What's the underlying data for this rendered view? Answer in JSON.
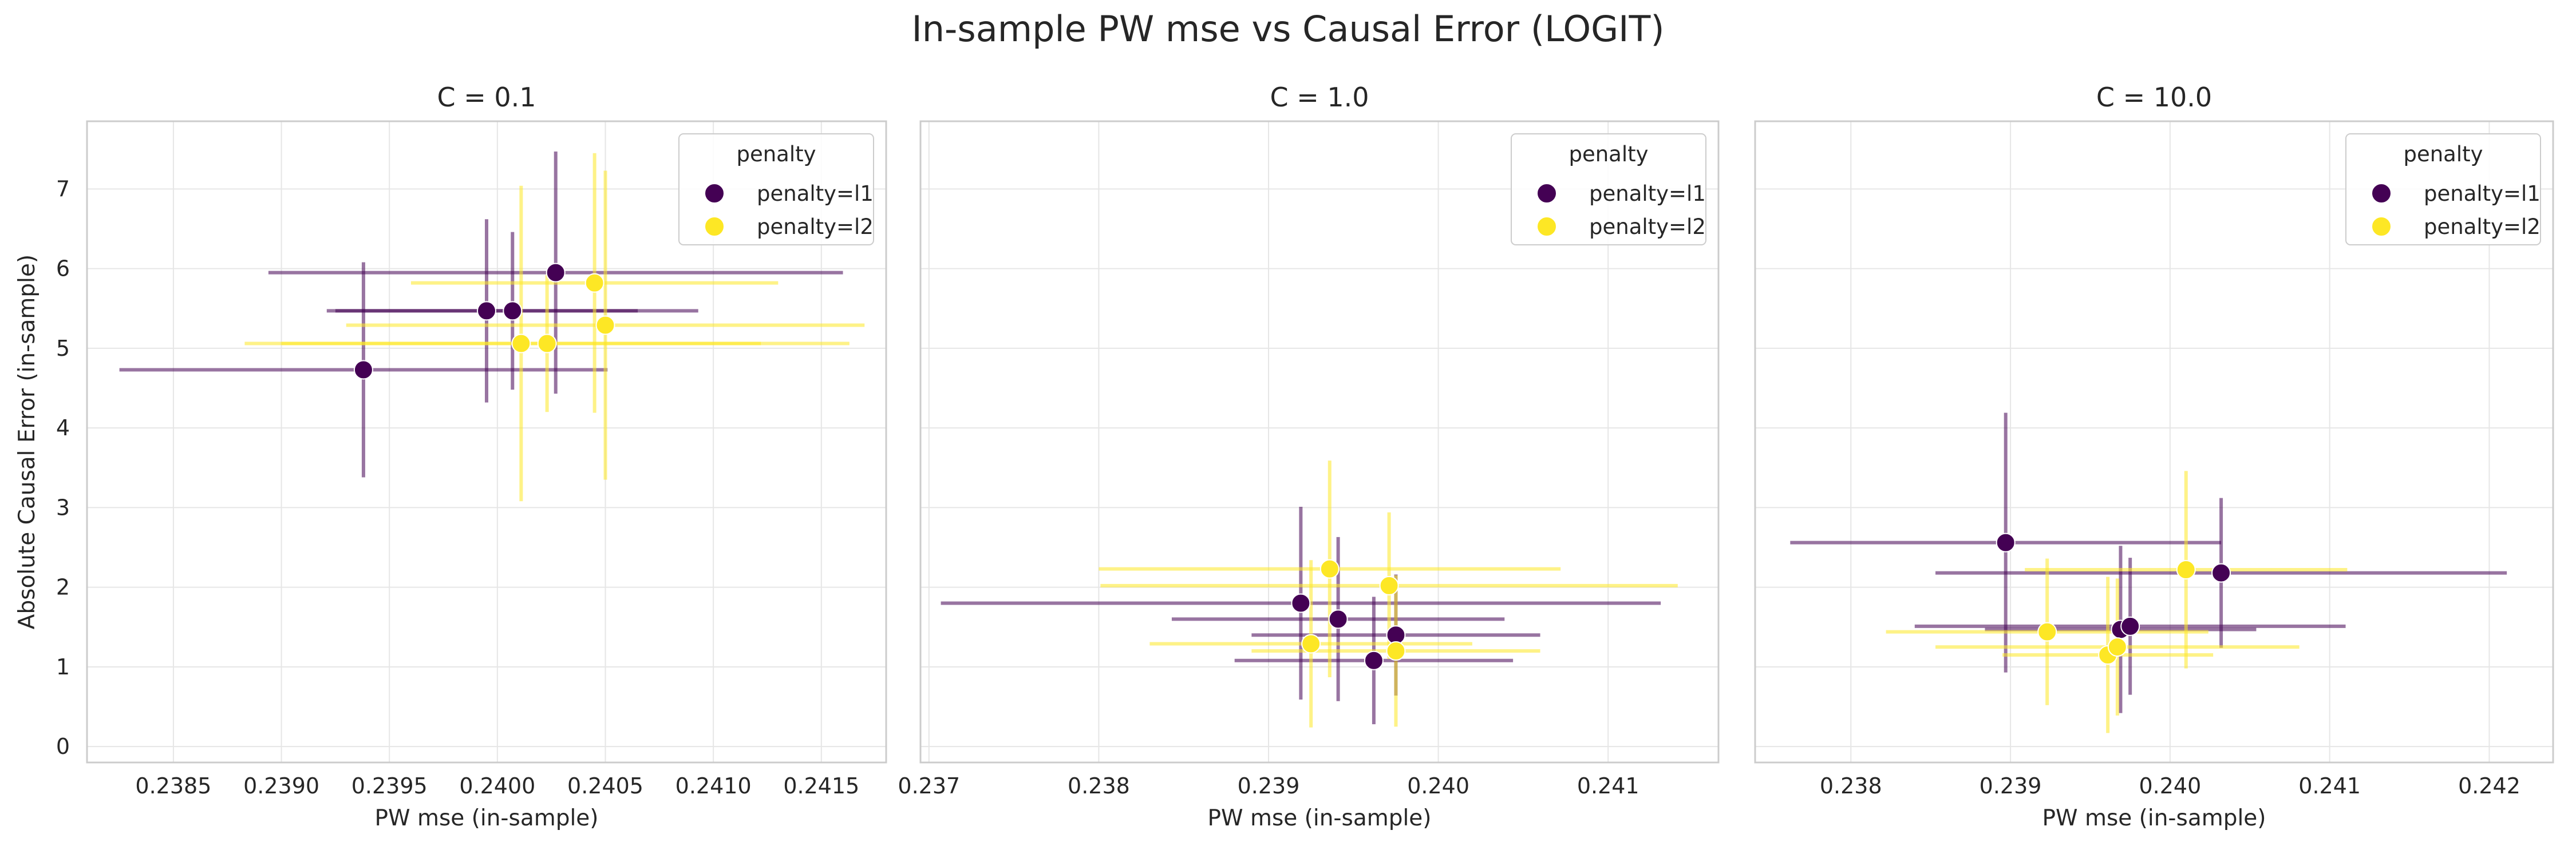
{
  "figure": {
    "title": "In-sample PW mse vs Causal Error (LOGIT)"
  },
  "colors": {
    "penalty_l1": "#440154",
    "penalty_l2": "#fde725",
    "grid": "#e6e6e6",
    "spine": "#cccccc",
    "text": "#262626"
  },
  "chart_data": [
    {
      "type": "scatter",
      "title": "C = 0.1",
      "xlabel": "PW mse (in-sample)",
      "ylabel": "Absolute Causal Error (in-sample)",
      "xlim": [
        0.2381,
        0.2418
      ],
      "ylim": [
        -0.2,
        7.85
      ],
      "xticks": [
        0.2385,
        0.239,
        0.2395,
        0.24,
        0.2405,
        0.241,
        0.2415
      ],
      "xtick_labels": [
        "0.2385",
        "0.2390",
        "0.2395",
        "0.2400",
        "0.2405",
        "0.2410",
        "0.2415"
      ],
      "yticks": [
        0,
        1,
        2,
        3,
        4,
        5,
        6,
        7
      ],
      "ytick_labels": [
        "0",
        "1",
        "2",
        "3",
        "4",
        "5",
        "6",
        "7"
      ],
      "grid": true,
      "legend": {
        "title": "penalty",
        "placement": "top-right",
        "entries": [
          "penalty=l1",
          "penalty=l2"
        ]
      },
      "series": [
        {
          "name": "penalty=l1",
          "points": [
            {
              "x": 0.23938,
              "y": 4.73,
              "xerr": 0.00113,
              "yerr": 1.35
            },
            {
              "x": 0.23995,
              "y": 5.47,
              "xerr": 0.0007,
              "yerr": 1.15
            },
            {
              "x": 0.24007,
              "y": 5.47,
              "xerr": 0.00086,
              "yerr": 0.99
            },
            {
              "x": 0.24027,
              "y": 5.95,
              "xerr": 0.00133,
              "yerr": 1.52
            }
          ]
        },
        {
          "name": "penalty=l2",
          "points": [
            {
              "x": 0.24011,
              "y": 5.06,
              "xerr": 0.00111,
              "yerr": 1.98
            },
            {
              "x": 0.24023,
              "y": 5.06,
              "xerr": 0.0014,
              "yerr": 0.86
            },
            {
              "x": 0.24045,
              "y": 5.82,
              "xerr": 0.00085,
              "yerr": 1.63
            },
            {
              "x": 0.2405,
              "y": 5.29,
              "xerr": 0.0012,
              "yerr": 1.94
            }
          ]
        }
      ]
    },
    {
      "type": "scatter",
      "title": "C = 1.0",
      "xlabel": "PW mse (in-sample)",
      "ylabel": "",
      "xlim": [
        0.23695,
        0.24165
      ],
      "ylim": [
        -0.2,
        7.85
      ],
      "xticks": [
        0.237,
        0.238,
        0.239,
        0.24,
        0.241
      ],
      "xtick_labels": [
        "0.237",
        "0.238",
        "0.239",
        "0.240",
        "0.241"
      ],
      "yticks": [
        0,
        1,
        2,
        3,
        4,
        5,
        6,
        7
      ],
      "ytick_labels": [],
      "grid": true,
      "legend": {
        "title": "penalty",
        "placement": "top-right",
        "entries": [
          "penalty=l1",
          "penalty=l2"
        ]
      },
      "series": [
        {
          "name": "penalty=l1",
          "points": [
            {
              "x": 0.23919,
              "y": 1.8,
              "xerr": 0.00212,
              "yerr": 1.21
            },
            {
              "x": 0.23941,
              "y": 1.6,
              "xerr": 0.00098,
              "yerr": 1.03
            },
            {
              "x": 0.23962,
              "y": 1.08,
              "xerr": 0.00082,
              "yerr": 0.8
            },
            {
              "x": 0.23975,
              "y": 1.4,
              "xerr": 0.00085,
              "yerr": 0.76
            }
          ]
        },
        {
          "name": "penalty=l2",
          "points": [
            {
              "x": 0.23925,
              "y": 1.29,
              "xerr": 0.00095,
              "yerr": 1.05
            },
            {
              "x": 0.23936,
              "y": 2.23,
              "xerr": 0.00136,
              "yerr": 1.36
            },
            {
              "x": 0.23971,
              "y": 2.02,
              "xerr": 0.0017,
              "yerr": 0.92
            },
            {
              "x": 0.23975,
              "y": 1.2,
              "xerr": 0.00085,
              "yerr": 0.95
            }
          ]
        }
      ]
    },
    {
      "type": "scatter",
      "title": "C = 10.0",
      "xlabel": "PW mse (in-sample)",
      "ylabel": "",
      "xlim": [
        0.2374,
        0.2424
      ],
      "ylim": [
        -0.2,
        7.85
      ],
      "xticks": [
        0.238,
        0.239,
        0.24,
        0.241,
        0.242
      ],
      "xtick_labels": [
        "0.238",
        "0.239",
        "0.240",
        "0.241",
        "0.242"
      ],
      "yticks": [
        0,
        1,
        2,
        3,
        4,
        5,
        6,
        7
      ],
      "ytick_labels": [],
      "grid": true,
      "legend": {
        "title": "penalty",
        "placement": "top-right",
        "entries": [
          "penalty=l1",
          "penalty=l2"
        ]
      },
      "series": [
        {
          "name": "penalty=l1",
          "points": [
            {
              "x": 0.23897,
              "y": 2.56,
              "xerr": 0.00135,
              "yerr": 1.63
            },
            {
              "x": 0.23969,
              "y": 1.47,
              "xerr": 0.00085,
              "yerr": 1.05
            },
            {
              "x": 0.23975,
              "y": 1.51,
              "xerr": 0.00135,
              "yerr": 0.86
            },
            {
              "x": 0.24032,
              "y": 2.18,
              "xerr": 0.00179,
              "yerr": 0.94
            }
          ]
        },
        {
          "name": "penalty=l2",
          "points": [
            {
              "x": 0.23923,
              "y": 1.44,
              "xerr": 0.00101,
              "yerr": 0.92
            },
            {
              "x": 0.23961,
              "y": 1.15,
              "xerr": 0.00066,
              "yerr": 0.98
            },
            {
              "x": 0.23967,
              "y": 1.25,
              "xerr": 0.00114,
              "yerr": 0.86
            },
            {
              "x": 0.2401,
              "y": 2.22,
              "xerr": 0.00101,
              "yerr": 1.24
            }
          ]
        }
      ]
    }
  ]
}
